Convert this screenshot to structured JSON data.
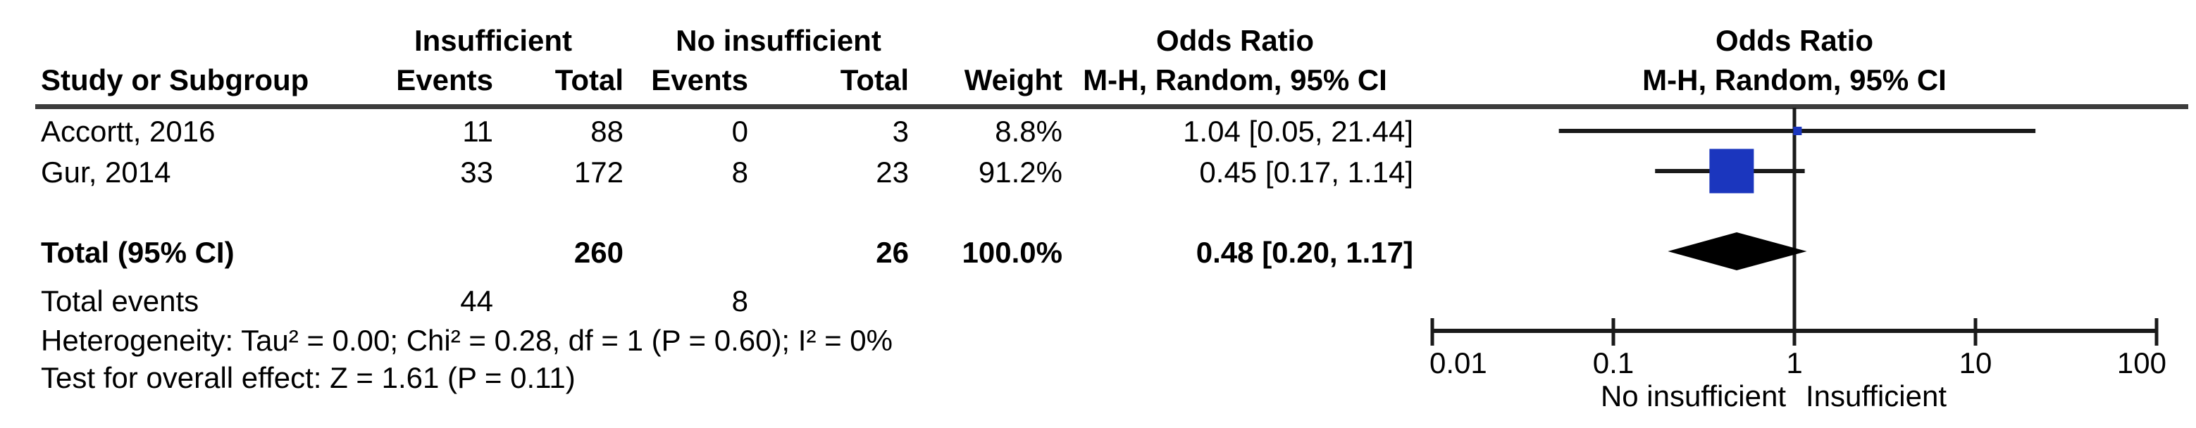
{
  "table": {
    "headers": {
      "group1": "Insufficient",
      "group2": "No insufficient",
      "study": "Study or Subgroup",
      "events": "Events",
      "total": "Total",
      "weight": "Weight",
      "or_col_line1": "Odds Ratio",
      "or_col_line2": "M-H, Random, 95% CI",
      "plot_col_line1": "Odds Ratio",
      "plot_col_line2": "M-H, Random, 95% CI"
    },
    "rows": [
      {
        "study": "Accortt, 2016",
        "events1": "11",
        "total1": "88",
        "events2": "0",
        "total2": "3",
        "weight": "8.8%",
        "or_ci": "1.04 [0.05, 21.44]"
      },
      {
        "study": "Gur, 2014",
        "events1": "33",
        "total1": "172",
        "events2": "8",
        "total2": "23",
        "weight": "91.2%",
        "or_ci": "0.45 [0.17, 1.14]"
      }
    ],
    "total_row": {
      "label": "Total (95% CI)",
      "total1": "260",
      "total2": "26",
      "weight": "100.0%",
      "or_ci": "0.48 [0.20, 1.17]"
    },
    "total_events_row": {
      "label": "Total events",
      "events1": "44",
      "events2": "8"
    },
    "heterogeneity": "Heterogeneity: Tau² = 0.00; Chi² = 0.28, df = 1 (P = 0.60); I² = 0%",
    "overall_effect": "Test for overall effect: Z = 1.61 (P = 0.11)"
  },
  "chart_data": {
    "type": "scatter",
    "subtype": "forest_plot",
    "title": "Odds Ratio",
    "effect_measure": "M-H, Random, 95% CI",
    "x_scale": "log10",
    "x_range": [
      0.01,
      100
    ],
    "x_ticks": [
      "0.01",
      "0.1",
      "1",
      "10",
      "100"
    ],
    "reference_line_x": 1,
    "axis_label_left": "No insufficient",
    "axis_label_right": "Insufficient",
    "studies": [
      {
        "name": "Accortt, 2016",
        "or": 1.04,
        "ci_low": 0.05,
        "ci_high": 21.44,
        "weight_pct": 8.8
      },
      {
        "name": "Gur, 2014",
        "or": 0.45,
        "ci_low": 0.17,
        "ci_high": 1.14,
        "weight_pct": 91.2
      }
    ],
    "total": {
      "name": "Total (95% CI)",
      "or": 0.48,
      "ci_low": 0.2,
      "ci_high": 1.17,
      "weight_pct": 100.0
    },
    "colors": {
      "marker_blue": "#1b36be",
      "diamond_black": "#000000",
      "line_black": "#1a1a1a",
      "rule_gray": "#3c3c3c"
    }
  }
}
